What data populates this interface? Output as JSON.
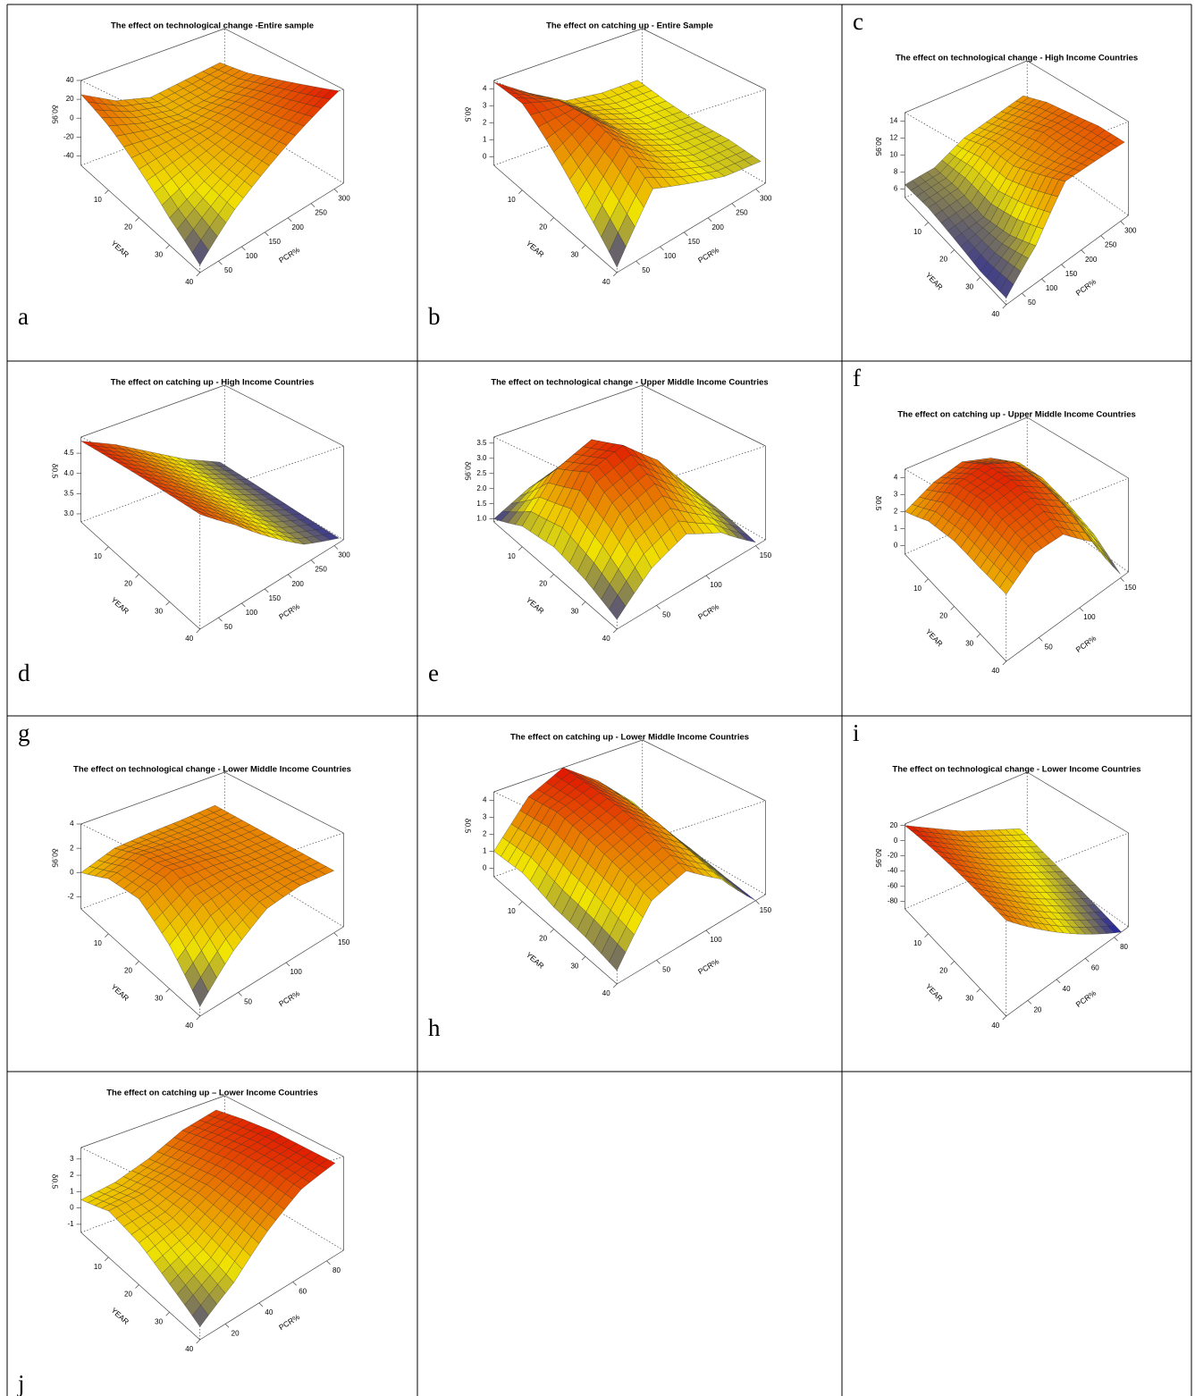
{
  "chart_data": [
    {
      "type": "surface",
      "label": "a",
      "label_corner": "bottom-left",
      "title": "The effect on technological change -Entire sample",
      "xlabel": "YEAR",
      "ylabel": "PCR%",
      "zlabel": "δ0.95",
      "x": [
        1,
        10,
        20,
        30,
        40
      ],
      "y": [
        10,
        85,
        160,
        235,
        310
      ],
      "z": [
        [
          25,
          5,
          -5,
          0,
          5
        ],
        [
          10,
          0,
          -5,
          0,
          10
        ],
        [
          -10,
          -5,
          0,
          10,
          20
        ],
        [
          -30,
          -15,
          0,
          15,
          30
        ],
        [
          -45,
          -20,
          0,
          20,
          40
        ]
      ],
      "xlim": [
        1,
        40
      ],
      "ylim": [
        10,
        320
      ],
      "zlim": [
        -50,
        40
      ],
      "xticks": [
        10,
        20,
        30,
        40
      ],
      "yticks": [
        50,
        100,
        150,
        200,
        250,
        300
      ],
      "zticks": [
        -40,
        -20,
        0,
        20,
        40
      ],
      "colors": [
        "#1818a8",
        "#f0e400",
        "#e01000"
      ]
    },
    {
      "type": "surface",
      "label": "b",
      "label_corner": "bottom-left",
      "title": "The effect on catching up - Entire Sample",
      "xlabel": "YEAR",
      "ylabel": "PCR%",
      "zlabel": "δ0.5",
      "x": [
        1,
        10,
        20,
        30,
        40
      ],
      "y": [
        10,
        85,
        160,
        235,
        310
      ],
      "z": [
        [
          4.4,
          3,
          1.8,
          1.5,
          1.5
        ],
        [
          4,
          3.5,
          2,
          1.3,
          1.2
        ],
        [
          2.5,
          3.5,
          2,
          1.2,
          1
        ],
        [
          1,
          3,
          1.8,
          1.1,
          1
        ],
        [
          -0.3,
          2,
          1.5,
          1,
          0.8
        ]
      ],
      "xlim": [
        1,
        40
      ],
      "ylim": [
        10,
        320
      ],
      "zlim": [
        -0.5,
        4.5
      ],
      "xticks": [
        10,
        20,
        30,
        40
      ],
      "yticks": [
        50,
        100,
        150,
        200,
        250,
        300
      ],
      "zticks": [
        0,
        1,
        2,
        3,
        4
      ],
      "colors": [
        "#1818a8",
        "#f0e400",
        "#e01000"
      ]
    },
    {
      "type": "surface",
      "label": "c",
      "label_corner": "top-left",
      "title": "The effect on technological change - High Income Countries",
      "xlabel": "YEAR",
      "ylabel": "PCR%",
      "zlabel": "δ0.95",
      "x": [
        1,
        10,
        20,
        30,
        40
      ],
      "y": [
        10,
        85,
        160,
        235,
        310
      ],
      "z": [
        [
          6.5,
          7,
          9,
          10,
          11
        ],
        [
          6.5,
          7,
          10,
          11,
          12
        ],
        [
          6,
          6.5,
          10,
          12,
          12.5
        ],
        [
          5.5,
          7,
          11,
          12,
          13
        ],
        [
          5.5,
          8,
          12,
          12.5,
          13
        ]
      ],
      "xlim": [
        1,
        40
      ],
      "ylim": [
        10,
        320
      ],
      "zlim": [
        5,
        15
      ],
      "xticks": [
        10,
        20,
        30,
        40
      ],
      "yticks": [
        50,
        100,
        150,
        200,
        250,
        300
      ],
      "zticks": [
        6,
        8,
        10,
        12,
        14
      ],
      "colors": [
        "#1818a8",
        "#f0e400",
        "#e01000"
      ]
    },
    {
      "type": "surface",
      "label": "d",
      "label_corner": "bottom-left",
      "title": "The effect on catching up - High Income Countries",
      "xlabel": "YEAR",
      "ylabel": "PCR%",
      "zlabel": "δ0.5",
      "x": [
        1,
        10,
        20,
        30,
        40
      ],
      "y": [
        10,
        85,
        160,
        235,
        310
      ],
      "z": [
        [
          4.8,
          4.4,
          3.9,
          3.4,
          3.0
        ],
        [
          4.75,
          4.35,
          3.85,
          3.35,
          2.98
        ],
        [
          4.7,
          4.3,
          3.8,
          3.3,
          2.95
        ],
        [
          4.65,
          4.25,
          3.75,
          3.25,
          2.92
        ],
        [
          4.6,
          4.2,
          3.7,
          3.2,
          2.9
        ]
      ],
      "xlim": [
        1,
        40
      ],
      "ylim": [
        10,
        320
      ],
      "zlim": [
        2.8,
        4.9
      ],
      "xticks": [
        10,
        20,
        30,
        40
      ],
      "yticks": [
        50,
        100,
        150,
        200,
        250,
        300
      ],
      "zticks": [
        {
          "value": 3,
          "label": "3.0"
        },
        3.5,
        {
          "value": 4,
          "label": "4.0"
        },
        4.5
      ],
      "colors": [
        "#1818a8",
        "#f0e400",
        "#e01000"
      ]
    },
    {
      "type": "surface",
      "label": "e",
      "label_corner": "bottom-left",
      "title": "The effect on technological change - Upper Middle Income Countries",
      "xlabel": "YEAR",
      "ylabel": "PCR%",
      "zlabel": "δ0.95",
      "x": [
        1,
        10,
        20,
        30,
        40
      ],
      "y": [
        10,
        45,
        80,
        115,
        150
      ],
      "z": [
        [
          1.0,
          1.6,
          2.0,
          1.6,
          1.2
        ],
        [
          1.5,
          2.8,
          3.3,
          2.5,
          1.5
        ],
        [
          1.6,
          3.2,
          3.6,
          2.8,
          1.5
        ],
        [
          1.4,
          2.6,
          3.0,
          2.2,
          1.3
        ],
        [
          1.1,
          1.8,
          2.2,
          1.8,
          1.0
        ]
      ],
      "xlim": [
        1,
        40
      ],
      "ylim": [
        10,
        160
      ],
      "zlim": [
        0.9,
        3.7
      ],
      "xticks": [
        10,
        20,
        30,
        40
      ],
      "yticks": [
        50,
        100,
        150
      ],
      "zticks": [
        {
          "value": 1,
          "label": "1.0"
        },
        1.5,
        {
          "value": 2,
          "label": "2.0"
        },
        2.5,
        {
          "value": 3,
          "label": "3.0"
        },
        3.5
      ],
      "colors": [
        "#1818a8",
        "#f0e400",
        "#e01000"
      ]
    },
    {
      "type": "surface",
      "label": "f",
      "label_corner": "top-left",
      "title": "The effect on catching up - Upper Middle Income Countries",
      "xlabel": "YEAR",
      "ylabel": "PCR%",
      "zlabel": "δ0.5",
      "x": [
        1,
        10,
        20,
        30,
        40
      ],
      "y": [
        10,
        45,
        80,
        115,
        150
      ],
      "z": [
        [
          2,
          3,
          3.5,
          3,
          2
        ],
        [
          2.5,
          3.8,
          4.2,
          3.6,
          2
        ],
        [
          2.5,
          3.8,
          4.2,
          3.5,
          1.5
        ],
        [
          2.2,
          3.4,
          3.8,
          3,
          0.8
        ],
        [
          2,
          3,
          3.2,
          2.2,
          -0.3
        ]
      ],
      "xlim": [
        1,
        40
      ],
      "ylim": [
        10,
        160
      ],
      "zlim": [
        -0.5,
        4.5
      ],
      "xticks": [
        10,
        20,
        30,
        40
      ],
      "yticks": [
        50,
        100,
        150
      ],
      "zticks": [
        0,
        1,
        2,
        3,
        4
      ],
      "colors": [
        "#1818a8",
        "#f0e400",
        "#e01000"
      ]
    },
    {
      "type": "surface",
      "label": "g",
      "label_corner": "top-left",
      "title": "The effect on technological change - Lower Middle Income Countries",
      "xlabel": "YEAR",
      "ylabel": "PCR%",
      "zlabel": "δ0.95",
      "x": [
        1,
        10,
        20,
        30,
        40
      ],
      "y": [
        10,
        45,
        80,
        115,
        150
      ],
      "z": [
        [
          0,
          1,
          1.2,
          1.3,
          1.5
        ],
        [
          1,
          1.8,
          1.6,
          1.5,
          1.5
        ],
        [
          1,
          2,
          1.8,
          1.5,
          1.5
        ],
        [
          -0.5,
          1,
          1.5,
          1.5,
          1.5
        ],
        [
          -2.5,
          -0.5,
          1,
          1.5,
          1.5
        ]
      ],
      "xlim": [
        1,
        40
      ],
      "ylim": [
        10,
        160
      ],
      "zlim": [
        -3,
        4
      ],
      "xticks": [
        10,
        20,
        30,
        40
      ],
      "yticks": [
        50,
        100,
        150
      ],
      "zticks": [
        -2,
        0,
        2,
        4
      ],
      "colors": [
        "#1818a8",
        "#f0e400",
        "#e01000"
      ]
    },
    {
      "type": "surface",
      "label": "h",
      "label_corner": "bottom-left",
      "title": "The effect on catching up - Lower Middle Income Countries",
      "xlabel": "YEAR",
      "ylabel": "PCR%",
      "zlabel": "δ0.5",
      "x": [
        1,
        10,
        20,
        30,
        40
      ],
      "y": [
        10,
        45,
        80,
        115,
        150
      ],
      "z": [
        [
          1,
          3.5,
          4.5,
          3,
          1
        ],
        [
          1,
          3.5,
          4.2,
          2.8,
          0.5
        ],
        [
          0.5,
          3,
          3.8,
          2.5,
          0.2
        ],
        [
          0.3,
          2.5,
          3.2,
          2,
          -0.2
        ],
        [
          0,
          2,
          2.6,
          1.5,
          -0.5
        ]
      ],
      "xlim": [
        1,
        40
      ],
      "ylim": [
        10,
        160
      ],
      "zlim": [
        -0.5,
        4.5
      ],
      "xticks": [
        10,
        20,
        30,
        40
      ],
      "yticks": [
        50,
        100,
        150
      ],
      "zticks": [
        0,
        1,
        2,
        3,
        4
      ],
      "colors": [
        "#1818a8",
        "#f0e400",
        "#e01000"
      ]
    },
    {
      "type": "surface",
      "label": "i",
      "label_corner": "top-left",
      "title": "The effect on technological change - Lower Income Countries",
      "xlabel": "YEAR",
      "ylabel": "PCR%",
      "zlabel": "δ0.95",
      "x": [
        1,
        10,
        20,
        30,
        40
      ],
      "y": [
        5,
        25,
        45,
        65,
        85
      ],
      "z": [
        [
          20,
          0,
          -20,
          -35,
          -50
        ],
        [
          13,
          -7,
          -27,
          -43,
          -60
        ],
        [
          5,
          -15,
          -35,
          -52,
          -70
        ],
        [
          -3,
          -22,
          -42,
          -61,
          -80
        ],
        [
          -10,
          -30,
          -50,
          -70,
          -90
        ]
      ],
      "xlim": [
        1,
        40
      ],
      "ylim": [
        5,
        90
      ],
      "zlim": [
        -90,
        22
      ],
      "xticks": [
        10,
        20,
        30,
        40
      ],
      "yticks": [
        20,
        40,
        60,
        80
      ],
      "zticks": [
        -80,
        -60,
        -40,
        -20,
        0,
        20
      ],
      "colors": [
        "#1818a8",
        "#f0e400",
        "#e01000"
      ]
    },
    {
      "type": "surface",
      "label": "j",
      "label_corner": "bottom-left",
      "title": "The effect on catching up – Lower Income Countries",
      "xlabel": "YEAR",
      "ylabel": "PCR%",
      "zlabel": "δ0.5",
      "x": [
        1,
        10,
        20,
        30,
        40
      ],
      "y": [
        5,
        25,
        45,
        65,
        85
      ],
      "z": [
        [
          0.5,
          0.8,
          1.5,
          2.5,
          3.0
        ],
        [
          1,
          1.2,
          1.8,
          2.8,
          3.3
        ],
        [
          0.5,
          1,
          2,
          3,
          3.5
        ],
        [
          -0.3,
          0.5,
          1.8,
          3,
          3.5
        ],
        [
          -1,
          0,
          1.5,
          2.8,
          3.5
        ]
      ],
      "xlim": [
        1,
        40
      ],
      "ylim": [
        5,
        90
      ],
      "zlim": [
        -1.5,
        3.7
      ],
      "xticks": [
        10,
        20,
        30,
        40
      ],
      "yticks": [
        20,
        40,
        60,
        80
      ],
      "zticks": [
        -1,
        0,
        1,
        2,
        3
      ],
      "colors": [
        "#1818a8",
        "#f0e400",
        "#e01000"
      ]
    }
  ]
}
